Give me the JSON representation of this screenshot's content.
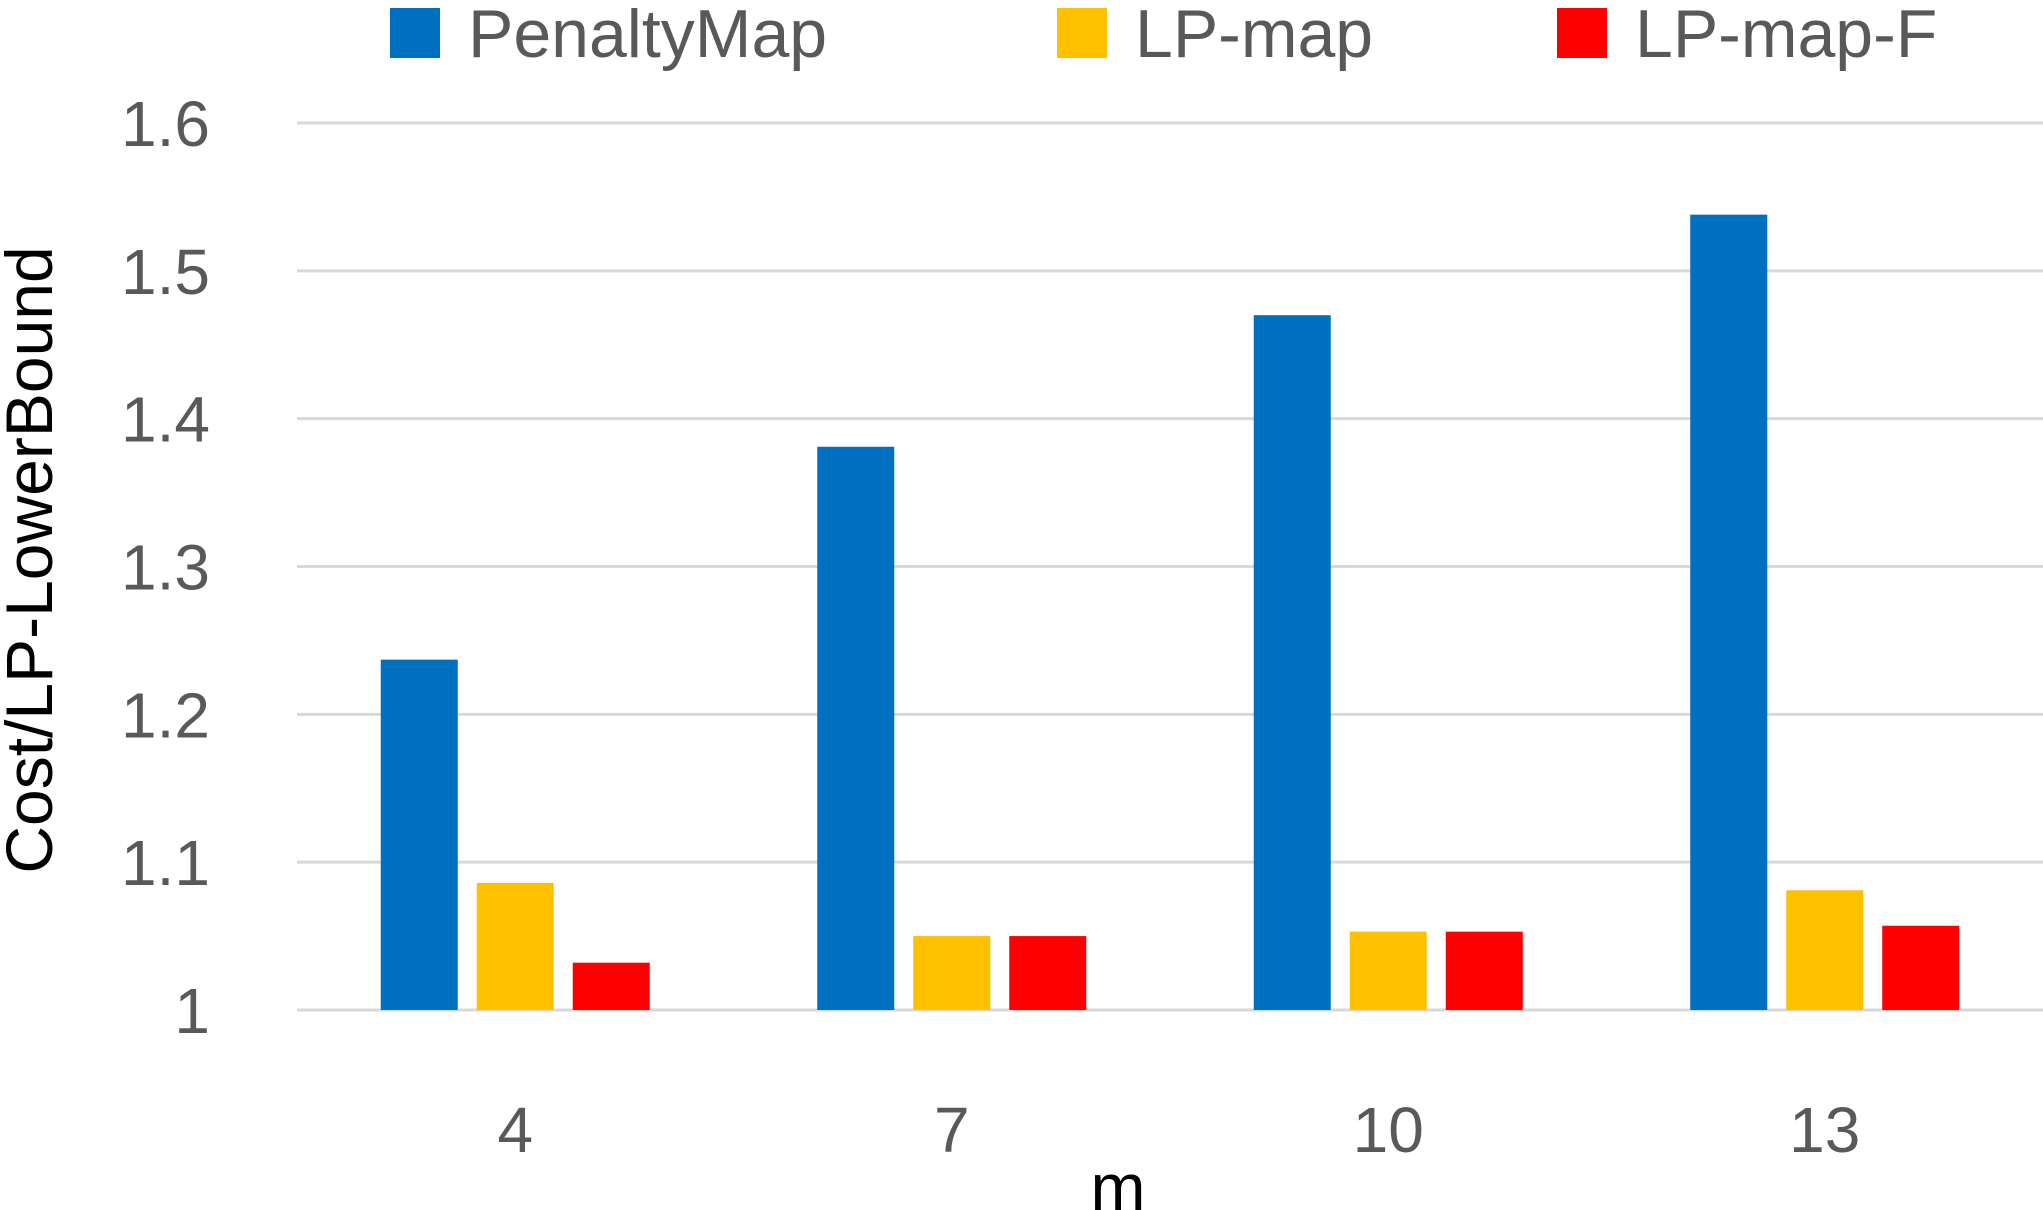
{
  "chart_data": {
    "type": "bar",
    "title": "",
    "xlabel": "m",
    "ylabel": "Cost/LP-LowerBound",
    "categories": [
      "4",
      "7",
      "10",
      "13"
    ],
    "series": [
      {
        "name": "PenaltyMap",
        "color": "#0070C0",
        "values": [
          1.237,
          1.381,
          1.47,
          1.538
        ]
      },
      {
        "name": "LP-map",
        "color": "#FFC000",
        "values": [
          1.086,
          1.05,
          1.053,
          1.081
        ]
      },
      {
        "name": "LP-map-F",
        "color": "#FF0000",
        "values": [
          1.032,
          1.05,
          1.053,
          1.057
        ]
      }
    ],
    "ylim": [
      1,
      1.6
    ],
    "yticks": [
      "1",
      "1.1",
      "1.2",
      "1.3",
      "1.4",
      "1.5",
      "1.6"
    ],
    "grid": true,
    "legend_position": "top"
  }
}
